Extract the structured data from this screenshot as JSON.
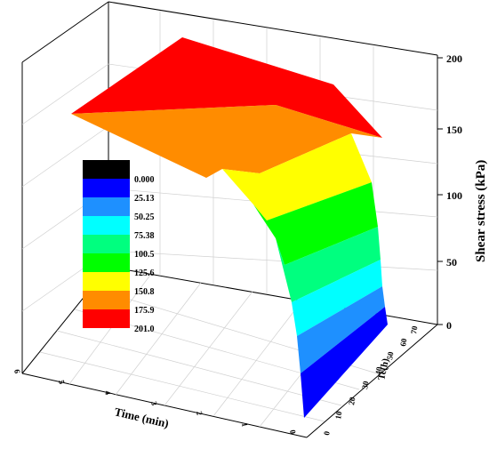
{
  "chart_data": {
    "type": "surface3d",
    "title": "",
    "xlabel": "Time (min)",
    "ylabel": "Tc(h)",
    "zlabel": "Shear stress (kPa)",
    "x_ticks": [
      "0",
      "1",
      "2",
      "3",
      "4",
      "5",
      "6"
    ],
    "y_ticks": [
      "0",
      "10",
      "20",
      "30",
      "40",
      "50",
      "60",
      "70"
    ],
    "z_ticks": [
      "0",
      "50",
      "100",
      "150",
      "200"
    ],
    "xlim": [
      0,
      6
    ],
    "ylim": [
      0,
      72
    ],
    "zlim": [
      0,
      210
    ],
    "grid": true,
    "legend_position": "left",
    "colorbar": {
      "levels": [
        "0.000",
        "25.13",
        "50.25",
        "75.38",
        "100.5",
        "125.6",
        "150.8",
        "175.9",
        "201.0"
      ],
      "colors": [
        "#000000",
        "#0000ff",
        "#1e90ff",
        "#00ffff",
        "#00ff7f",
        "#00ff00",
        "#ffff00",
        "#ff8c00",
        "#ff0000"
      ]
    },
    "surface_points": [
      {
        "time": 0.0,
        "tc": 0,
        "stress": 10
      },
      {
        "time": 0.0,
        "tc": 72,
        "stress": 10
      },
      {
        "time": 0.5,
        "tc": 36,
        "stress": 40
      },
      {
        "time": 1.0,
        "tc": 36,
        "stress": 70
      },
      {
        "time": 2.0,
        "tc": 36,
        "stress": 115
      },
      {
        "time": 3.0,
        "tc": 36,
        "stress": 150
      },
      {
        "time": 4.0,
        "tc": 36,
        "stress": 170
      },
      {
        "time": 6.0,
        "tc": 0,
        "stress": 150
      },
      {
        "time": 6.0,
        "tc": 72,
        "stress": 201
      }
    ]
  }
}
